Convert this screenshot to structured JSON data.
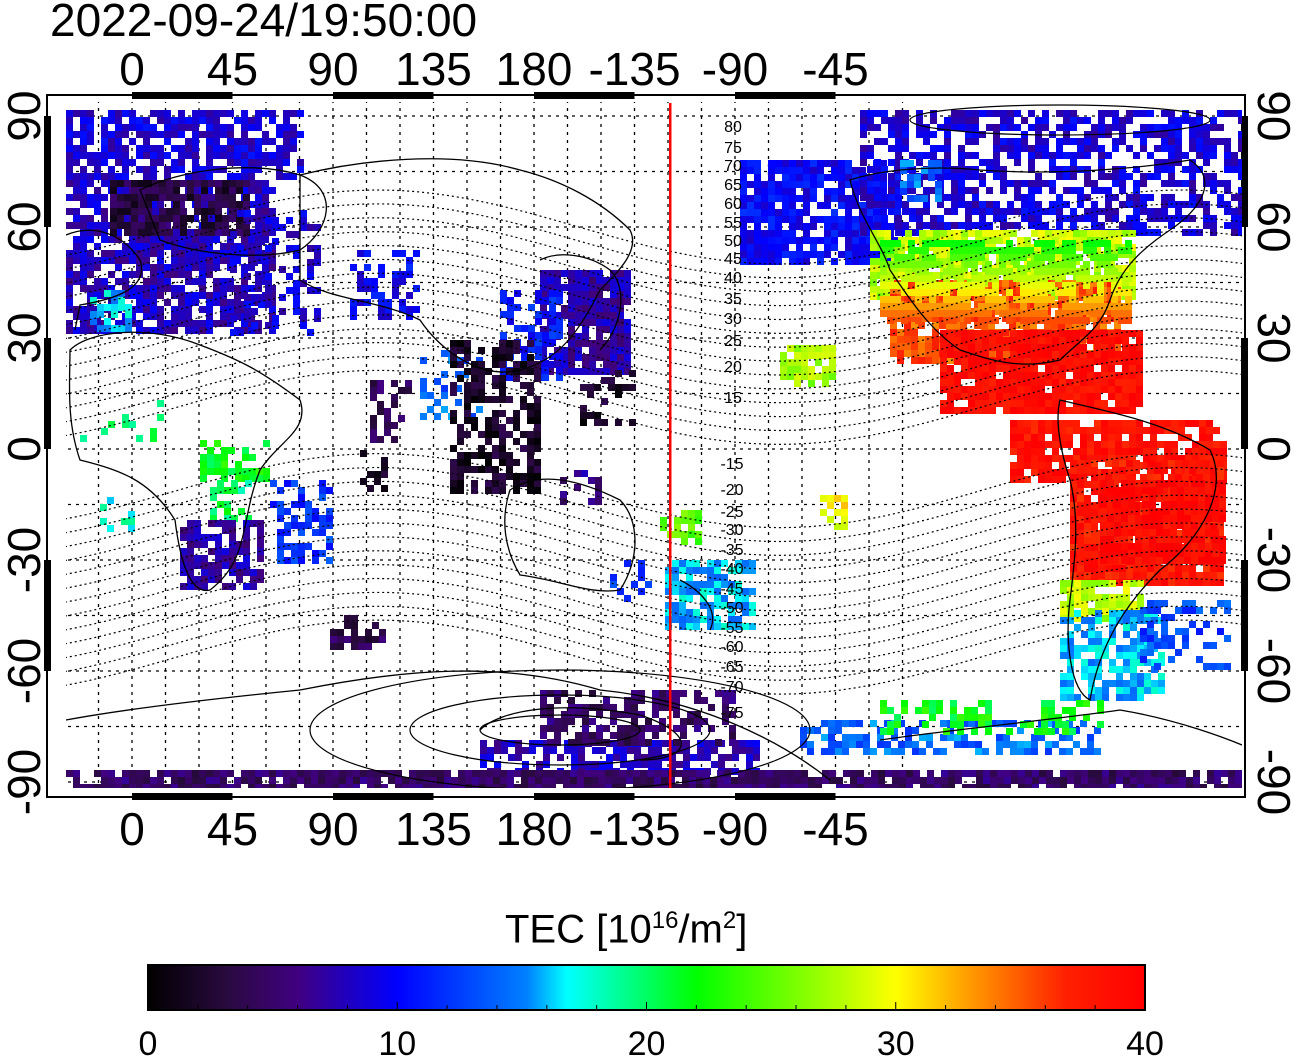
{
  "timestamp": "2022-09-24/19:50:00",
  "map": {
    "lon_ticks_top": [
      "0",
      "45",
      "90",
      "135",
      "180",
      "-135",
      "-90",
      "-45"
    ],
    "lon_ticks_bottom": [
      "0",
      "45",
      "90",
      "135",
      "180",
      "-135",
      "-90",
      "-45"
    ],
    "lat_ticks_left": [
      "90",
      "60",
      "30",
      "0",
      "-30",
      "-60",
      "-90"
    ],
    "lat_ticks_right": [
      "90",
      "60",
      "30",
      "0",
      "-30",
      "-60",
      "-90"
    ],
    "dip_latitude_labels_north": [
      "80",
      "75",
      "70",
      "65",
      "60",
      "55",
      "50",
      "45",
      "40",
      "35",
      "30",
      "25",
      "20",
      "15"
    ],
    "dip_latitude_labels_south": [
      "-15",
      "-20",
      "-25",
      "-30",
      "-35",
      "-40",
      "-45",
      "-50",
      "-55",
      "-60",
      "-65",
      "-70",
      "-75"
    ],
    "terminator_line_color": "#ff0000",
    "terminator_lon": -119
  },
  "colorbar": {
    "label_main": "TEC  [10",
    "label_exp": "16",
    "label_unit": "/m",
    "label_exp2": "2",
    "label_close": "]",
    "ticks": [
      "0",
      "10",
      "20",
      "30",
      "40"
    ],
    "min": 0,
    "max": 40
  }
}
